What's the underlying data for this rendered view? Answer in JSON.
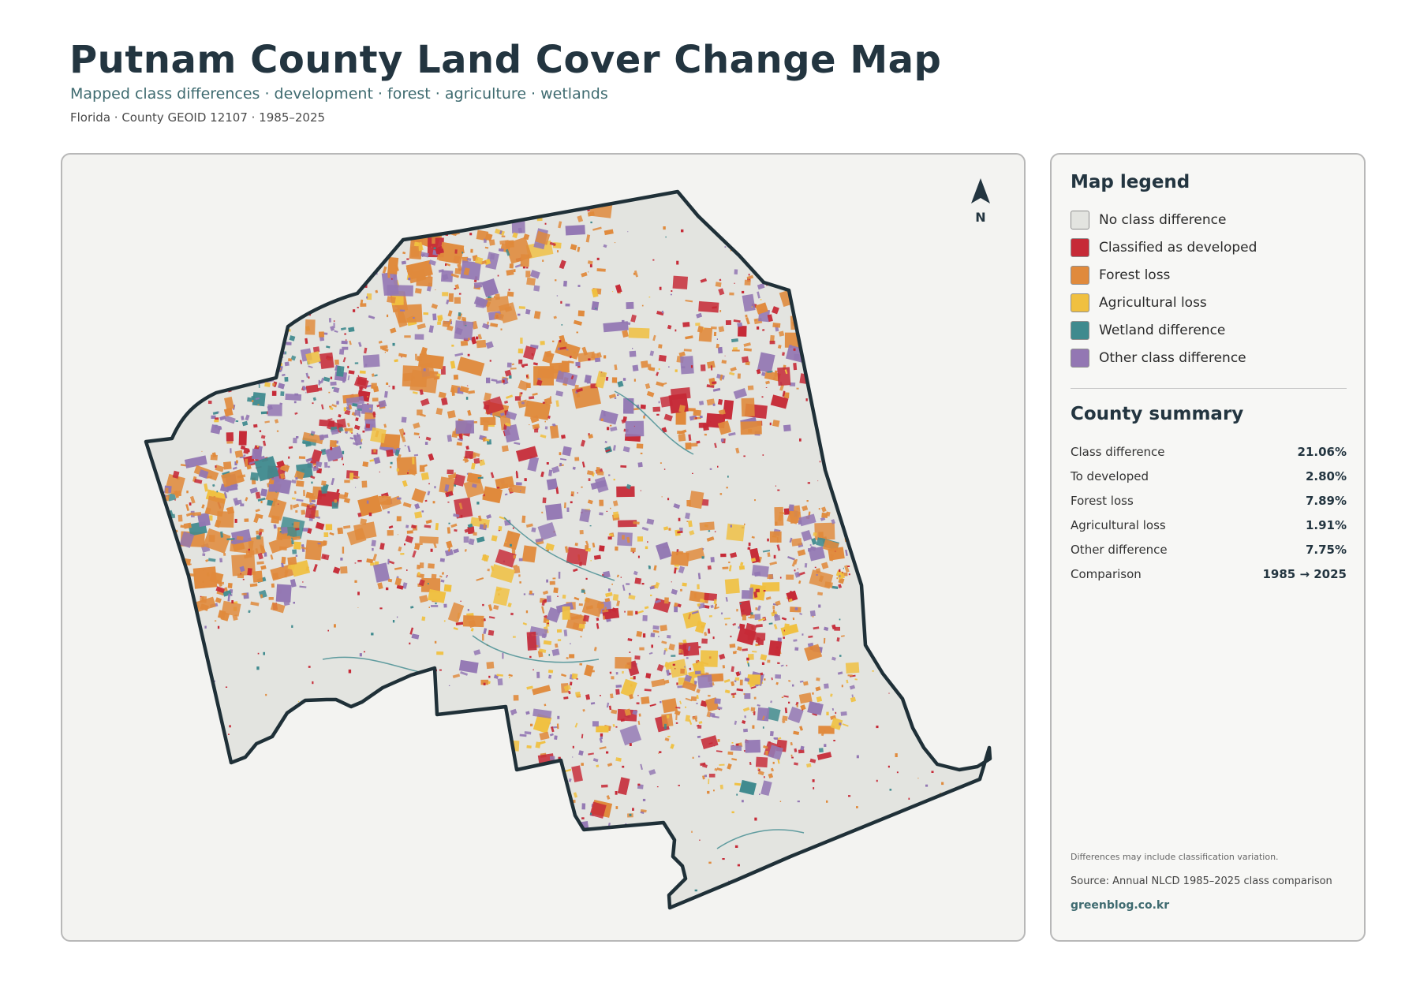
{
  "header": {
    "title": "Putnam County Land Cover Change Map",
    "subtitle": "Mapped class differences · development · forest · agriculture · wetlands",
    "meta": "Florida · County GEOID 12107 · 1985–2025"
  },
  "map": {
    "north_label": "N",
    "colors": {
      "no_change": "#e3e4e0",
      "developed": "#c62a37",
      "forest_loss": "#e08a3c",
      "agricultural_loss": "#f0c040",
      "wetland": "#3f8a8e",
      "other": "#9377b3",
      "outline": "#1f3038"
    }
  },
  "legend": {
    "title": "Map legend",
    "items": [
      {
        "label": "No class difference",
        "color": "#e3e4e0"
      },
      {
        "label": "Classified as developed",
        "color": "#c62a37"
      },
      {
        "label": "Forest loss",
        "color": "#e08a3c"
      },
      {
        "label": "Agricultural loss",
        "color": "#f0c040"
      },
      {
        "label": "Wetland difference",
        "color": "#3f8a8e"
      },
      {
        "label": "Other class difference",
        "color": "#9377b3"
      }
    ]
  },
  "summary": {
    "title": "County summary",
    "rows": [
      {
        "label": "Class difference",
        "value": "21.06%"
      },
      {
        "label": "To developed",
        "value": "2.80%"
      },
      {
        "label": "Forest loss",
        "value": "7.89%"
      },
      {
        "label": "Agricultural loss",
        "value": "1.91%"
      },
      {
        "label": "Other difference",
        "value": "7.75%"
      },
      {
        "label": "Comparison",
        "value": "1985 → 2025"
      }
    ]
  },
  "footer": {
    "note": "Differences may include classification variation.",
    "source": "Source: Annual NLCD 1985–2025 class comparison",
    "site": "greenblog.co.kr"
  }
}
